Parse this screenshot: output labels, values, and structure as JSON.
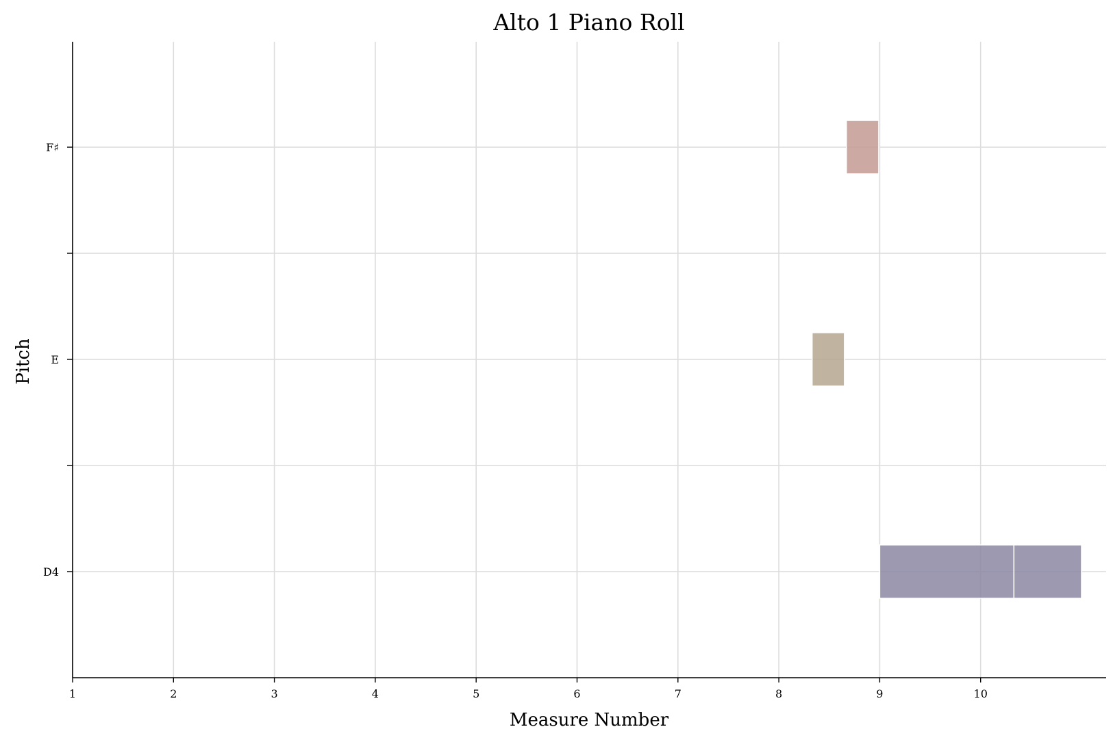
{
  "chart_data": {
    "type": "bar",
    "subtype": "piano-roll",
    "title": "Alto 1 Piano Roll",
    "xlabel": "Measure Number",
    "ylabel": "Pitch",
    "xlim": [
      1,
      11.25
    ],
    "ylim": [
      -1,
      5
    ],
    "x_ticks": [
      1,
      2,
      3,
      4,
      5,
      6,
      7,
      8,
      9,
      10
    ],
    "y_ticks": [
      {
        "value": 0,
        "label": "D4"
      },
      {
        "value": 1,
        "label": ""
      },
      {
        "value": 2,
        "label": "E"
      },
      {
        "value": 3,
        "label": ""
      },
      {
        "value": 4,
        "label": "F♯"
      }
    ],
    "grid": true,
    "notes": [
      {
        "pitch": "E",
        "y": 2,
        "start": 8.33,
        "end": 8.65,
        "color": "#b5a68e"
      },
      {
        "pitch": "F♯",
        "y": 4,
        "start": 8.67,
        "end": 8.99,
        "color": "#c49a94"
      },
      {
        "pitch": "D4",
        "y": 0,
        "start": 9.0,
        "end": 10.33,
        "color": "#8b87a3"
      },
      {
        "pitch": "D4",
        "y": 0,
        "start": 10.33,
        "end": 11.0,
        "color": "#8b87a3"
      }
    ]
  }
}
